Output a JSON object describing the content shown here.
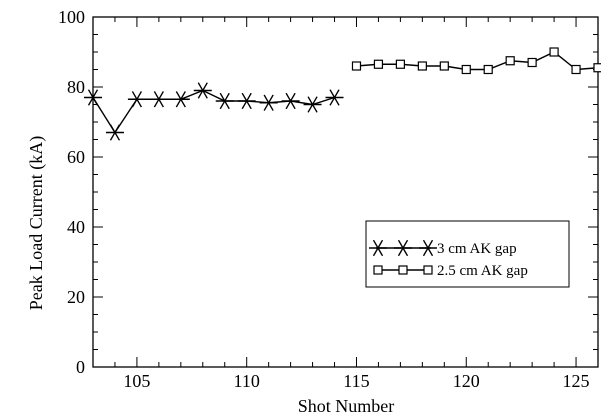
{
  "chart_data": {
    "type": "line",
    "title": "",
    "xlabel": "Shot Number",
    "ylabel": "Peak Load Current (kA)",
    "xlim": [
      103,
      126
    ],
    "ylim": [
      0,
      100
    ],
    "x_ticks": [
      105,
      110,
      115,
      120,
      125
    ],
    "y_ticks": [
      0,
      20,
      40,
      60,
      80,
      100
    ],
    "grid": false,
    "legend_position": "center-right",
    "series": [
      {
        "name": "3 cm AK gap",
        "marker": "asterisk",
        "color": "#000000",
        "x": [
          103,
          104,
          105,
          106,
          107,
          108,
          109,
          110,
          111,
          112,
          113,
          114
        ],
        "y": [
          77,
          67,
          76.5,
          76.5,
          76.5,
          79,
          76,
          76,
          75.5,
          76,
          75,
          77
        ]
      },
      {
        "name": "2.5 cm AK gap",
        "marker": "square",
        "color": "#000000",
        "x": [
          115,
          116,
          117,
          118,
          119,
          120,
          121,
          122,
          123,
          124,
          125,
          126
        ],
        "y": [
          86,
          86.5,
          86.5,
          86,
          86,
          85,
          85,
          87.5,
          87,
          90,
          85,
          85.5
        ]
      }
    ]
  }
}
